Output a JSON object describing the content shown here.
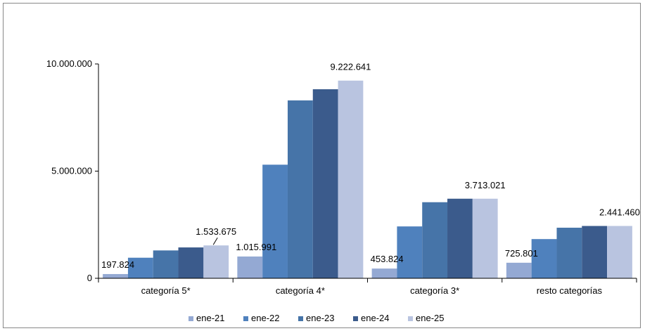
{
  "chart_data": {
    "type": "bar",
    "categories": [
      "categoría 5*",
      "categoría 4*",
      "categoría 3*",
      "resto categorías"
    ],
    "series": [
      {
        "name": "ene-21",
        "color": "#94A9D3",
        "values": [
          197824,
          1015991,
          453824,
          725801
        ]
      },
      {
        "name": "ene-22",
        "color": "#4F81BD",
        "values": [
          960000,
          5300000,
          2420000,
          1830000
        ]
      },
      {
        "name": "ene-23",
        "color": "#4674A8",
        "values": [
          1300000,
          8300000,
          3550000,
          2360000
        ]
      },
      {
        "name": "ene-24",
        "color": "#3B5B8C",
        "values": [
          1440000,
          8820000,
          3713021,
          2441460
        ]
      },
      {
        "name": "ene-25",
        "color": "#B9C4E0",
        "values": [
          1533675,
          9222641,
          3713021,
          2441460
        ]
      }
    ],
    "ylim": [
      0,
      10000000
    ],
    "yticks": [
      {
        "value": 0,
        "label": "0"
      },
      {
        "value": 5000000,
        "label": "5.000.000"
      },
      {
        "value": 10000000,
        "label": "10.000.000"
      }
    ],
    "data_labels": [
      {
        "series": 0,
        "category": 0,
        "text": "197.824"
      },
      {
        "series": 4,
        "category": 0,
        "text": "1.533.675"
      },
      {
        "series": 0,
        "category": 1,
        "text": "1.015.991"
      },
      {
        "series": 4,
        "category": 1,
        "text": "9.222.641"
      },
      {
        "series": 0,
        "category": 2,
        "text": "453.824"
      },
      {
        "series": 4,
        "category": 2,
        "text": "3.713.021"
      },
      {
        "series": 0,
        "category": 3,
        "text": "725.801"
      },
      {
        "series": 4,
        "category": 3,
        "text": "2.441.460"
      }
    ],
    "legend_position": "bottom",
    "grid": false,
    "title": "",
    "xlabel": "",
    "ylabel": ""
  }
}
